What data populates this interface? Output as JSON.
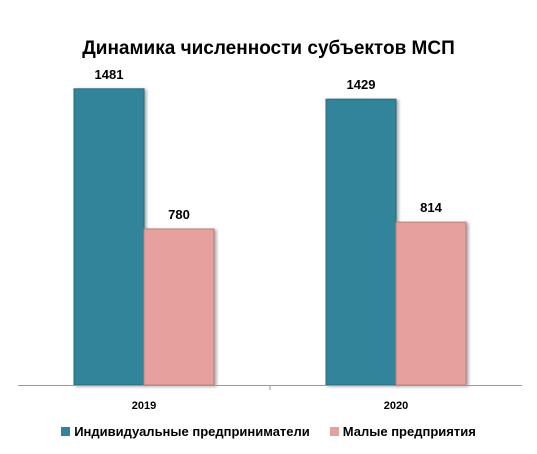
{
  "chart_data": {
    "type": "bar",
    "title": "Динамика численности субъектов МСП",
    "categories": [
      "2019",
      "2020"
    ],
    "series": [
      {
        "name": "Индивидуальные предприниматели",
        "values": [
          1481,
          1429
        ],
        "color": "#31849b"
      },
      {
        "name": "Малые предприятия",
        "values": [
          780,
          814
        ],
        "color": "#e6a09e"
      }
    ],
    "ylim": [
      0,
      1600
    ],
    "grid": false,
    "legend": "bottom",
    "data_labels": true
  }
}
